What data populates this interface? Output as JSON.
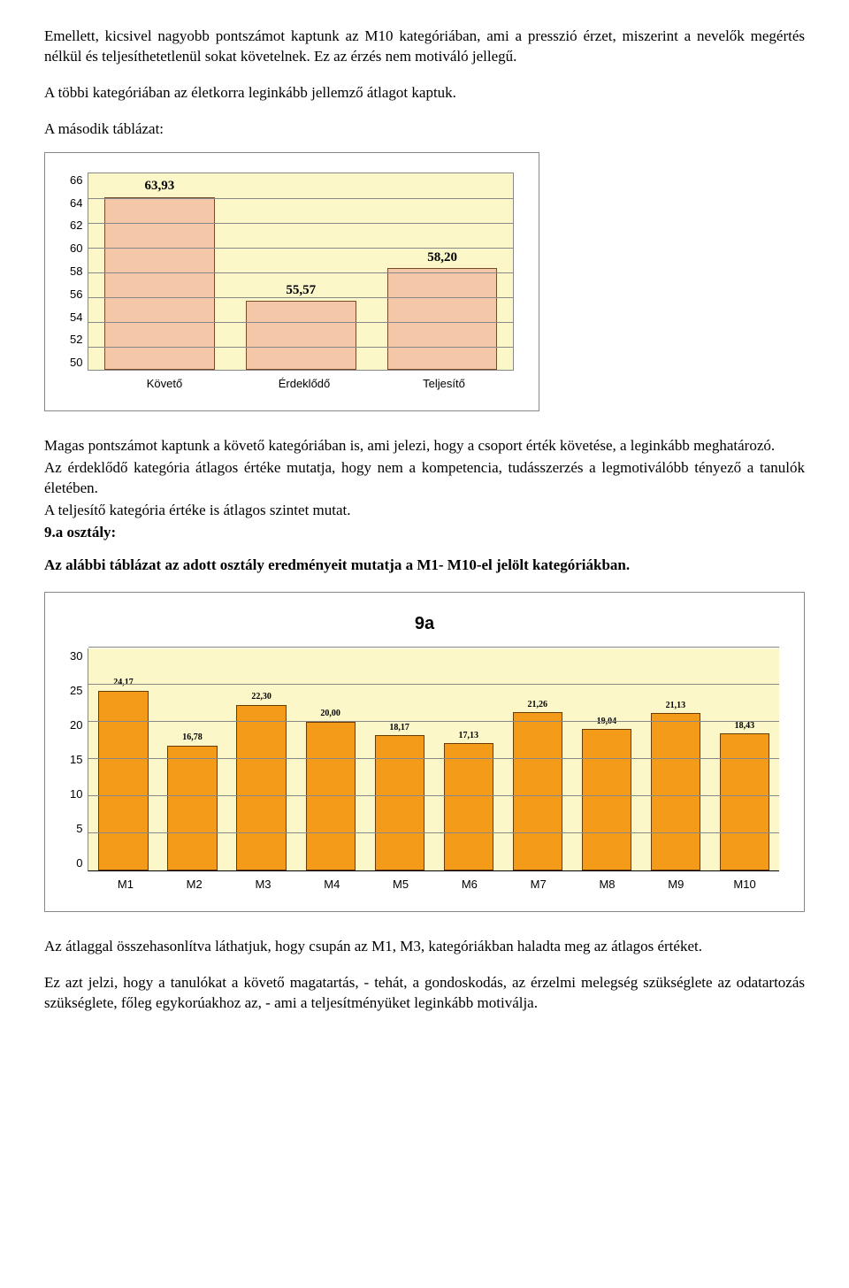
{
  "paragraphs": {
    "p1": "Emellett, kicsivel nagyobb pontszámot kaptunk az M10 kategóriában, ami a presszió érzet, miszerint a nevelők megértés nélkül és teljesíthetetlenül sokat követelnek. Ez az érzés nem motiváló jellegű.",
    "p2": "A többi kategóriában az életkorra leginkább jellemző átlagot kaptuk.",
    "heading1": "A második táblázat:",
    "p3": "Magas pontszámot kaptunk a követő kategóriában is, ami jelezi, hogy a csoport érték követése, a leginkább meghatározó.",
    "p4": "Az érdeklődő kategória átlagos értéke mutatja, hogy nem a kompetencia, tudásszerzés a legmotiválóbb tényező a tanulók életében.",
    "p5": "A teljesítő kategória értéke is átlagos szintet mutat.",
    "p6": "9.a osztály:",
    "bold1": "Az alábbi táblázat az adott osztály eredményeit mutatja a M1- M10-el jelölt kategóriákban.",
    "p7": "Az átlaggal összehasonlítva láthatjuk, hogy csupán az M1, M3, kategóriákban haladta meg az átlagos értéket.",
    "p8": "Ez azt jelzi, hogy a tanulókat a követő magatartás, - tehát, a gondoskodás, az érzelmi melegség szükséglete az odatartozás szükséglete, főleg egykorúakhoz az, - ami a teljesítményüket leginkább motiválja."
  },
  "chart1": {
    "type": "bar",
    "categories": [
      "Követő",
      "Érdeklődő",
      "Teljesítő"
    ],
    "values": [
      63.93,
      55.57,
      58.2
    ],
    "value_labels": [
      "63,93",
      "55,57",
      "58,20"
    ],
    "ymin": 50,
    "ymax": 66,
    "ytick_step": 2,
    "yticks": [
      "66",
      "64",
      "62",
      "60",
      "58",
      "56",
      "54",
      "52",
      "50"
    ],
    "bar_color": "#f4c7a8",
    "bar_border": "#7a4a2a",
    "background_color": "#fbf7c9",
    "grid_color": "#888888",
    "label_fontsize": 13,
    "value_fontsize": 15
  },
  "chart2": {
    "type": "bar",
    "title": "9a",
    "categories": [
      "M1",
      "M2",
      "M3",
      "M4",
      "M5",
      "M6",
      "M7",
      "M8",
      "M9",
      "M10"
    ],
    "values": [
      24.17,
      16.78,
      22.3,
      20.0,
      18.17,
      17.13,
      21.26,
      19.04,
      21.13,
      18.43
    ],
    "value_labels": [
      "24,17",
      "16,78",
      "22,30",
      "20,00",
      "18,17",
      "17,13",
      "21,26",
      "19,04",
      "21,13",
      "18,43"
    ],
    "ymin": 0,
    "ymax": 30,
    "ytick_step": 5,
    "yticks": [
      "0",
      "5",
      "10",
      "15",
      "20",
      "25",
      "30"
    ],
    "bar_color": "#f59b1a",
    "bar_border": "#6b3a00",
    "background_color": "#fbf7c9",
    "grid_color": "#888888",
    "label_fontsize": 13,
    "value_fontsize": 10,
    "title_fontsize": 20
  }
}
